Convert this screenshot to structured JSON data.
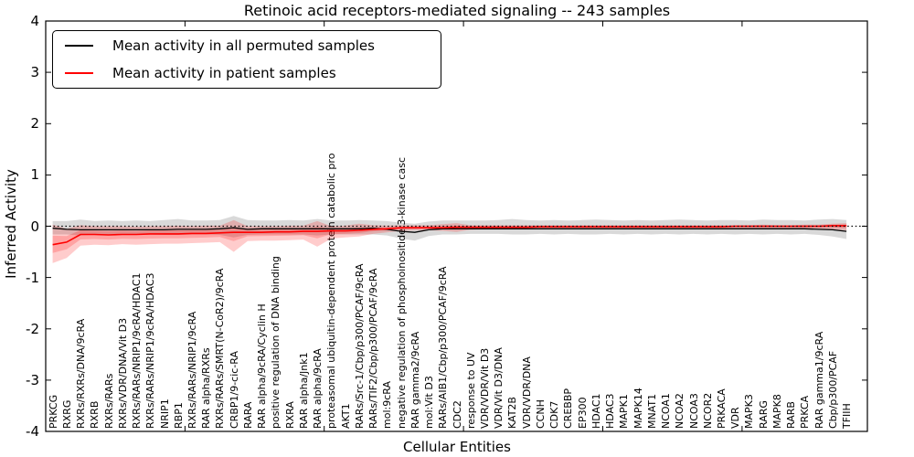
{
  "figure": {
    "title": "Retinoic acid receptors-mediated signaling -- 243 samples",
    "xlabel": "Cellular Entities",
    "ylabel": "Inferred Activity",
    "legend": [
      {
        "label": "Mean activity in all permuted samples",
        "color": "#000000"
      },
      {
        "label": "Mean activity in patient samples",
        "color": "#ff0000"
      }
    ]
  },
  "chart_data": {
    "type": "line",
    "title": "Retinoic acid receptors-mediated signaling -- 243 samples",
    "xlabel": "Cellular Entities",
    "ylabel": "Inferred Activity",
    "ylim": [
      -4,
      4
    ],
    "yticks": [
      -4,
      -3,
      -2,
      -1,
      0,
      1,
      2,
      3,
      4
    ],
    "xticks": [
      10,
      20,
      30,
      40,
      50
    ],
    "grid": false,
    "legend_position": "upper left",
    "reference_line": {
      "y": 0,
      "style": "dotted",
      "color": "#000000"
    },
    "categories": [
      "PRKCG",
      "RXRG",
      "RXRs/RXRs/DNA/9cRA",
      "RXRB",
      "RXRs/RARs",
      "RXRs/VDR/DNA/Vit D3",
      "RXRs/RARs/NRIP1/9cRA/HDAC1",
      "RXRs/RARs/NRIP1/9cRA/HDAC3",
      "NRIP1",
      "RBP1",
      "RXRs/RARs/NRIP1/9cRA",
      "RAR alpha/RXRs",
      "RXRs/RARs/SMRT(N-CoR2)/9cRA",
      "CRBP1/9-cic-RA",
      "RARA",
      "RAR alpha/9cRA/Cyclin H",
      "positive regulation of DNA binding",
      "RXRA",
      "RAR alpha/Jnk1",
      "RAR alpha/9cRA",
      "proteasomal ubiquitin-dependent protein catabolic pro",
      "AKT1",
      "RARs/Src-1/Cbp/p300/PCAF/9cRA",
      "RARs/TIF2/Cbp/p300/PCAF/9cRA",
      "mol:9cRA",
      "negative regulation of phosphoinositide 3-kinase casc",
      "RAR gamma2/9cRA",
      "mol:Vit D3",
      "RARs/AIB1/Cbp/p300/PCAF/9cRA",
      "CDC2",
      "response to UV",
      "VDR/VDR/Vit D3",
      "VDR/Vit D3/DNA",
      "KAT2B",
      "VDR/VDR/DNA",
      "CCNH",
      "CDK7",
      "CREBBP",
      "EP300",
      "HDAC1",
      "HDAC3",
      "MAPK1",
      "MAPK14",
      "MNAT1",
      "NCOA1",
      "NCOA2",
      "NCOA3",
      "NCOR2",
      "PRKACA",
      "VDR",
      "MAPK3",
      "RARG",
      "MAPK8",
      "RARB",
      "PRKCA",
      "RAR gamma1/9cRA",
      "Cbp/p300/PCAF",
      "TFIIH"
    ],
    "series": [
      {
        "name": "Mean activity in all permuted samples",
        "color": "#000000",
        "band_color": "rgba(0,0,0,0.15)",
        "values": [
          -0.04,
          -0.06,
          -0.07,
          -0.07,
          -0.07,
          -0.07,
          -0.07,
          -0.07,
          -0.07,
          -0.06,
          -0.06,
          -0.06,
          -0.05,
          -0.03,
          -0.06,
          -0.05,
          -0.05,
          -0.05,
          -0.05,
          -0.05,
          -0.05,
          -0.05,
          -0.05,
          -0.04,
          -0.06,
          -0.1,
          -0.12,
          -0.07,
          -0.05,
          -0.05,
          -0.05,
          -0.05,
          -0.05,
          -0.05,
          -0.05,
          -0.05,
          -0.05,
          -0.05,
          -0.05,
          -0.05,
          -0.05,
          -0.05,
          -0.05,
          -0.05,
          -0.05,
          -0.05,
          -0.05,
          -0.05,
          -0.05,
          -0.05,
          -0.05,
          -0.05,
          -0.05,
          -0.05,
          -0.05,
          -0.06,
          -0.07,
          -0.1
        ],
        "band_upper": [
          0.1,
          0.1,
          0.13,
          0.1,
          0.11,
          0.1,
          0.11,
          0.1,
          0.12,
          0.14,
          0.11,
          0.11,
          0.12,
          0.2,
          0.12,
          0.11,
          0.11,
          0.12,
          0.11,
          0.14,
          0.11,
          0.11,
          0.12,
          0.11,
          0.1,
          0.07,
          0.05,
          0.09,
          0.11,
          0.11,
          0.11,
          0.11,
          0.12,
          0.14,
          0.12,
          0.11,
          0.12,
          0.11,
          0.12,
          0.13,
          0.12,
          0.11,
          0.12,
          0.11,
          0.12,
          0.13,
          0.12,
          0.11,
          0.12,
          0.12,
          0.11,
          0.13,
          0.12,
          0.12,
          0.11,
          0.13,
          0.14,
          0.12
        ],
        "band_lower": [
          -0.16,
          -0.16,
          -0.18,
          -0.16,
          -0.17,
          -0.16,
          -0.16,
          -0.16,
          -0.17,
          -0.17,
          -0.16,
          -0.16,
          -0.17,
          -0.22,
          -0.17,
          -0.16,
          -0.16,
          -0.16,
          -0.16,
          -0.18,
          -0.16,
          -0.16,
          -0.16,
          -0.16,
          -0.18,
          -0.24,
          -0.28,
          -0.19,
          -0.16,
          -0.16,
          -0.15,
          -0.15,
          -0.15,
          -0.16,
          -0.16,
          -0.15,
          -0.16,
          -0.15,
          -0.16,
          -0.16,
          -0.15,
          -0.16,
          -0.15,
          -0.16,
          -0.15,
          -0.16,
          -0.15,
          -0.16,
          -0.15,
          -0.16,
          -0.15,
          -0.16,
          -0.15,
          -0.16,
          -0.15,
          -0.17,
          -0.2,
          -0.25
        ]
      },
      {
        "name": "Mean activity in patient samples",
        "color": "#ff0000",
        "band_color": "rgba(255,0,0,0.20)",
        "values": [
          -0.36,
          -0.31,
          -0.16,
          -0.16,
          -0.17,
          -0.16,
          -0.16,
          -0.15,
          -0.15,
          -0.15,
          -0.14,
          -0.14,
          -0.13,
          -0.12,
          -0.12,
          -0.12,
          -0.11,
          -0.11,
          -0.1,
          -0.1,
          -0.09,
          -0.09,
          -0.08,
          -0.06,
          -0.05,
          -0.03,
          -0.03,
          -0.03,
          -0.03,
          -0.02,
          -0.02,
          -0.02,
          -0.02,
          -0.02,
          -0.02,
          -0.01,
          -0.01,
          -0.01,
          -0.01,
          -0.01,
          -0.01,
          -0.01,
          -0.01,
          -0.01,
          -0.01,
          -0.01,
          -0.01,
          -0.01,
          -0.01,
          0.0,
          0.0,
          0.0,
          0.0,
          0.0,
          0.0,
          0.0,
          0.01,
          0.01
        ],
        "band_upper": [
          0.03,
          -0.05,
          0.02,
          0.0,
          0.0,
          0.0,
          -0.01,
          0.0,
          0.0,
          0.01,
          0.0,
          0.01,
          0.01,
          0.12,
          0.0,
          0.0,
          0.0,
          0.01,
          0.01,
          0.1,
          0.0,
          0.01,
          0.05,
          0.02,
          0.01,
          0.02,
          0.02,
          0.02,
          0.04,
          0.06,
          0.02,
          0.02,
          0.02,
          0.02,
          0.02,
          0.02,
          0.02,
          0.02,
          0.02,
          0.02,
          0.02,
          0.02,
          0.02,
          0.02,
          0.02,
          0.02,
          0.02,
          0.02,
          0.02,
          0.02,
          0.02,
          0.03,
          0.02,
          0.02,
          0.03,
          0.03,
          0.05,
          0.06
        ],
        "band_lower": [
          -0.72,
          -0.62,
          -0.38,
          -0.36,
          -0.37,
          -0.35,
          -0.36,
          -0.35,
          -0.34,
          -0.34,
          -0.33,
          -0.32,
          -0.31,
          -0.5,
          -0.29,
          -0.28,
          -0.28,
          -0.27,
          -0.26,
          -0.4,
          -0.24,
          -0.22,
          -0.2,
          -0.15,
          -0.12,
          -0.09,
          -0.08,
          -0.08,
          -0.09,
          -0.11,
          -0.07,
          -0.06,
          -0.06,
          -0.06,
          -0.06,
          -0.05,
          -0.05,
          -0.05,
          -0.05,
          -0.05,
          -0.05,
          -0.05,
          -0.05,
          -0.05,
          -0.05,
          -0.05,
          -0.05,
          -0.05,
          -0.05,
          -0.04,
          -0.04,
          -0.04,
          -0.04,
          -0.04,
          -0.04,
          -0.05,
          -0.06,
          -0.08
        ]
      }
    ]
  }
}
